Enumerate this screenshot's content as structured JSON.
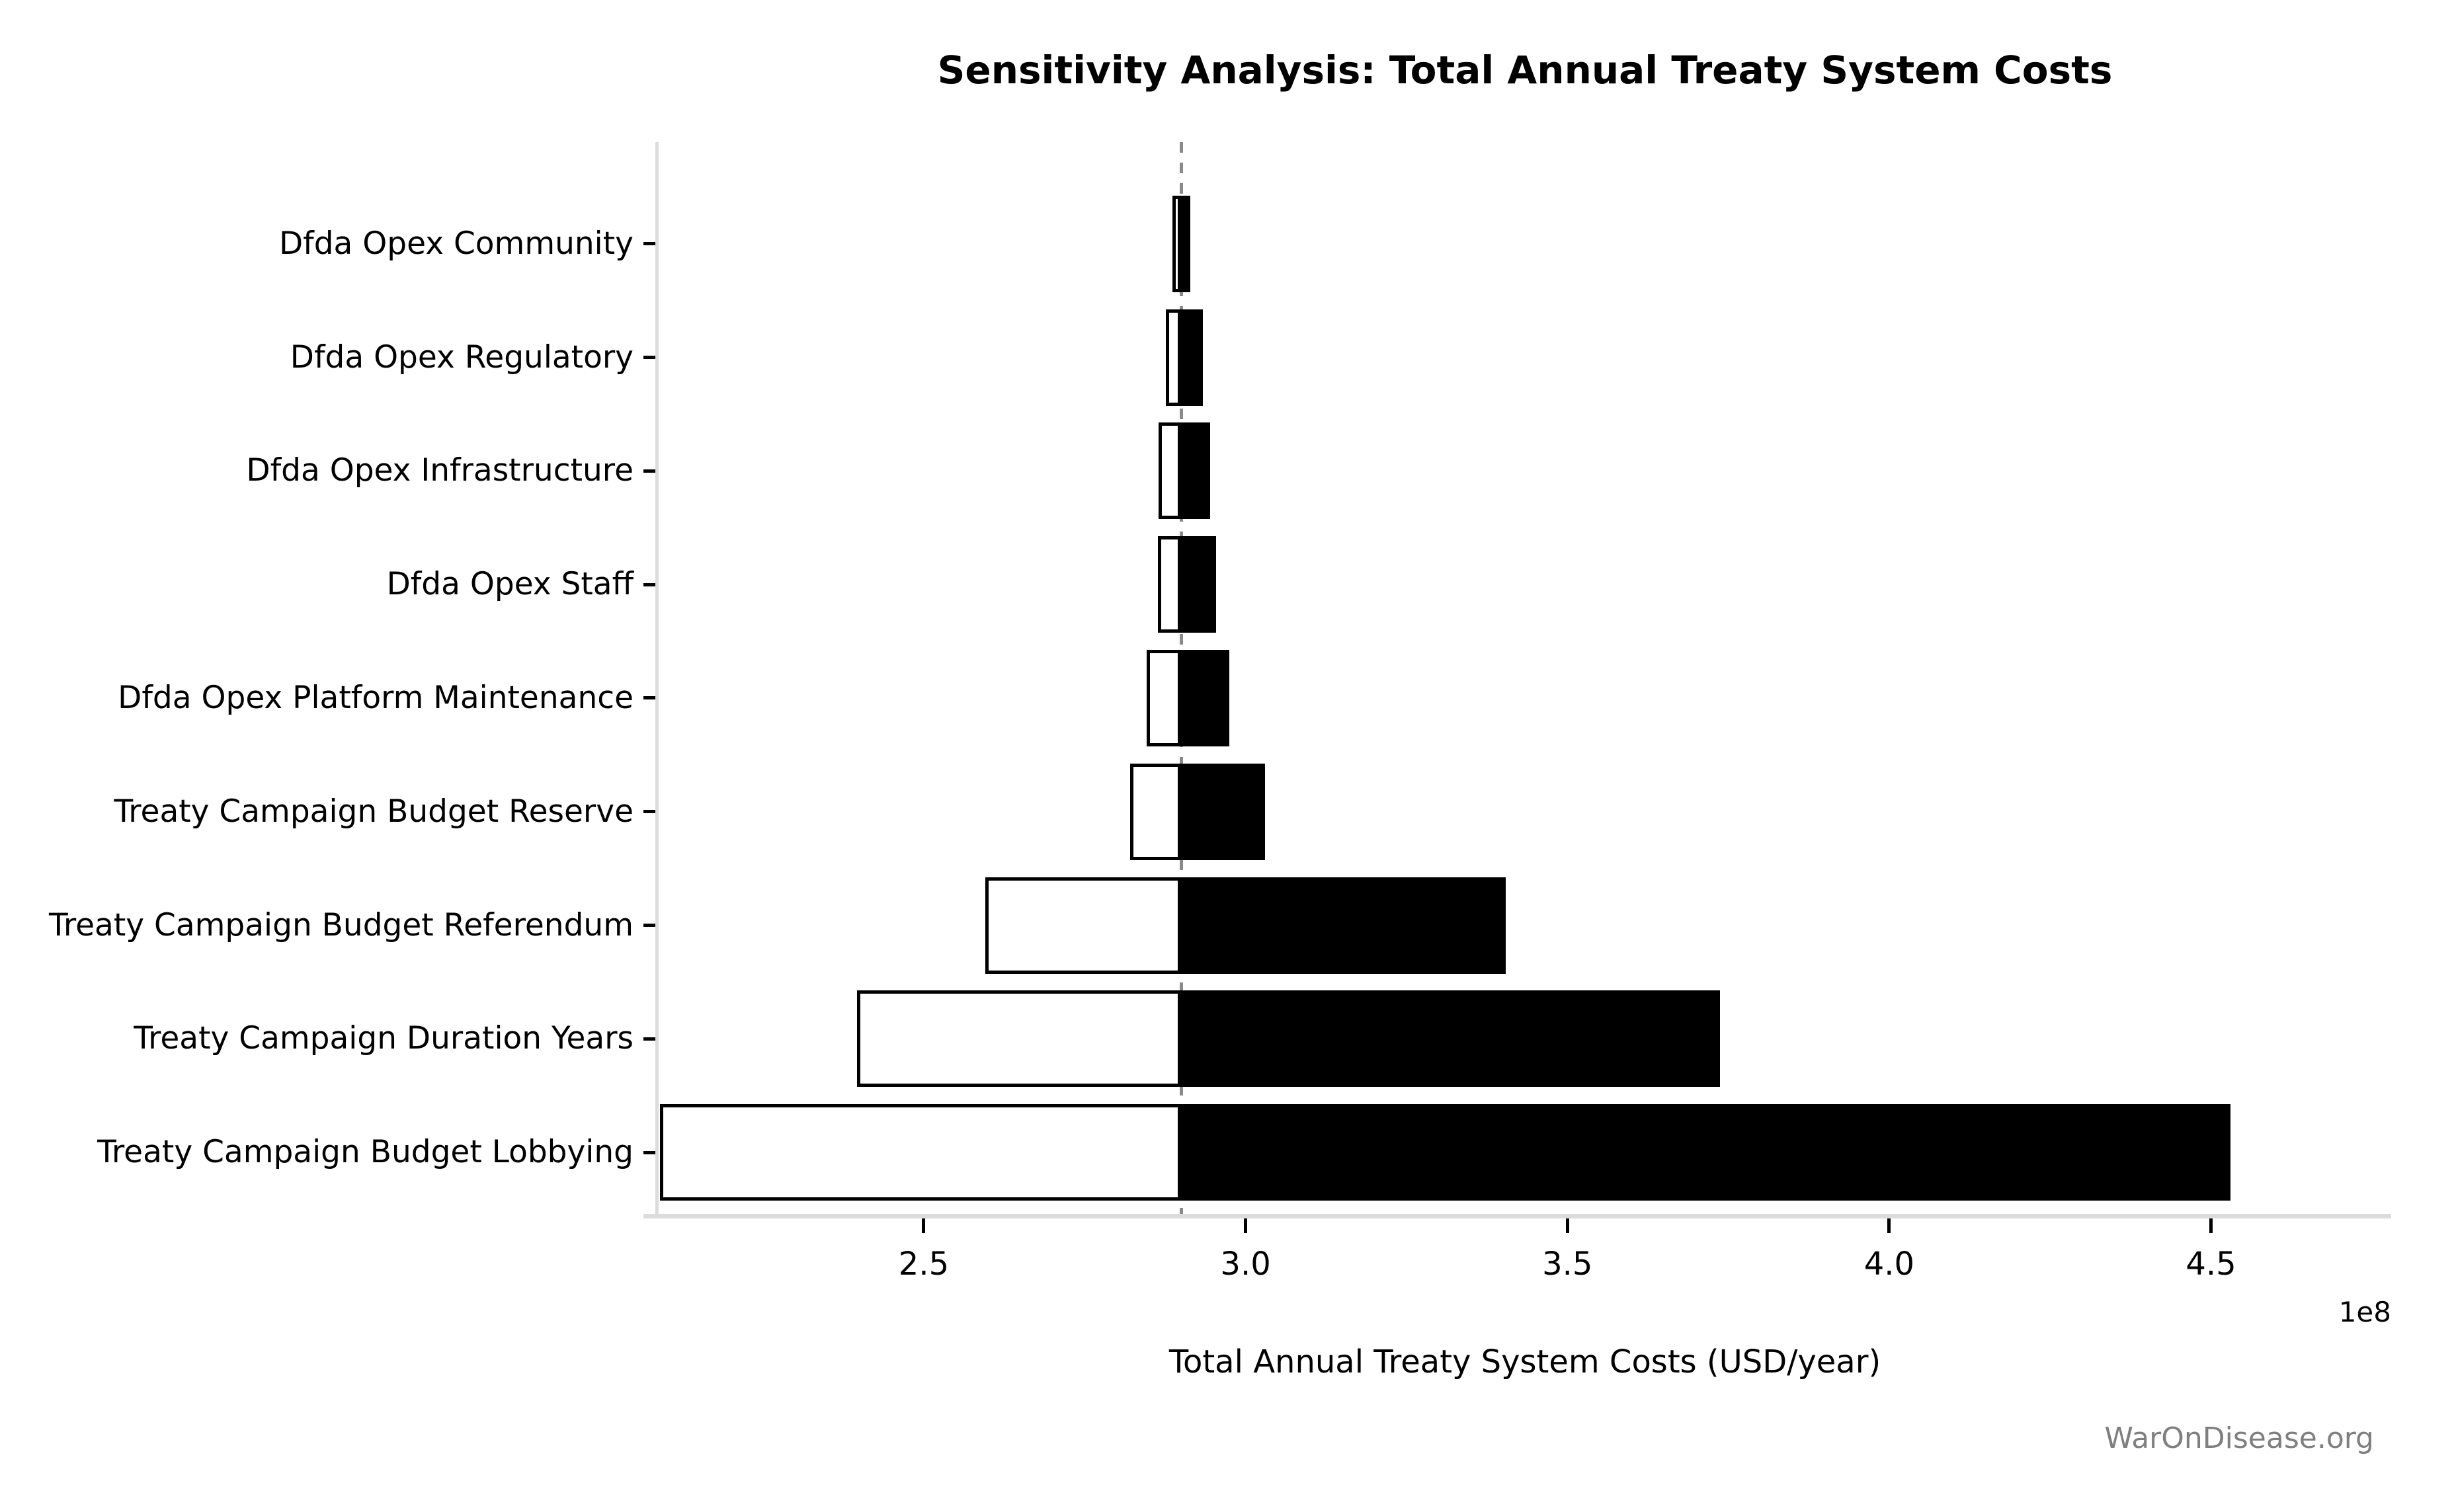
{
  "watermark": "WarOnDisease.org",
  "chart_data": {
    "type": "bar",
    "variant": "tornado-sensitivity",
    "orientation": "horizontal",
    "title": "Sensitivity Analysis: Total Annual Treaty System Costs",
    "xlabel": "Total Annual Treaty System Costs (USD/year)",
    "axis_offset_label": "1e8",
    "grid": false,
    "legend": null,
    "baseline": 290000000,
    "xlim": [
      208800000,
      478000000
    ],
    "xticks": {
      "values": [
        250000000,
        300000000,
        350000000,
        400000000,
        450000000
      ],
      "labels": [
        "2.5",
        "3.0",
        "3.5",
        "4.0",
        "4.5"
      ]
    },
    "categories": [
      "Dfda Opex Community",
      "Dfda Opex Regulatory",
      "Dfda Opex Infrastructure",
      "Dfda Opex Staff",
      "Dfda Opex Platform Maintenance",
      "Treaty Campaign Budget Reserve",
      "Treaty Campaign Budget Referendum",
      "Treaty Campaign Duration Years",
      "Treaty Campaign Budget Lobbying"
    ],
    "series": [
      {
        "name": "low",
        "values": [
          288600000,
          287600000,
          286500000,
          286400000,
          284600000,
          282100000,
          259600000,
          239600000,
          209000000
        ]
      },
      {
        "name": "high",
        "values": [
          291400000,
          293400000,
          294500000,
          295400000,
          297500000,
          303000000,
          340400000,
          373700000,
          453000000
        ]
      }
    ],
    "colors": {
      "low_fill": "#ffffff",
      "high_fill": "#000000",
      "bar_edge": "#000000",
      "baseline_line": "#8a8a8a",
      "spine": "#dcdcdc",
      "watermark": "#7f7f7f"
    }
  }
}
